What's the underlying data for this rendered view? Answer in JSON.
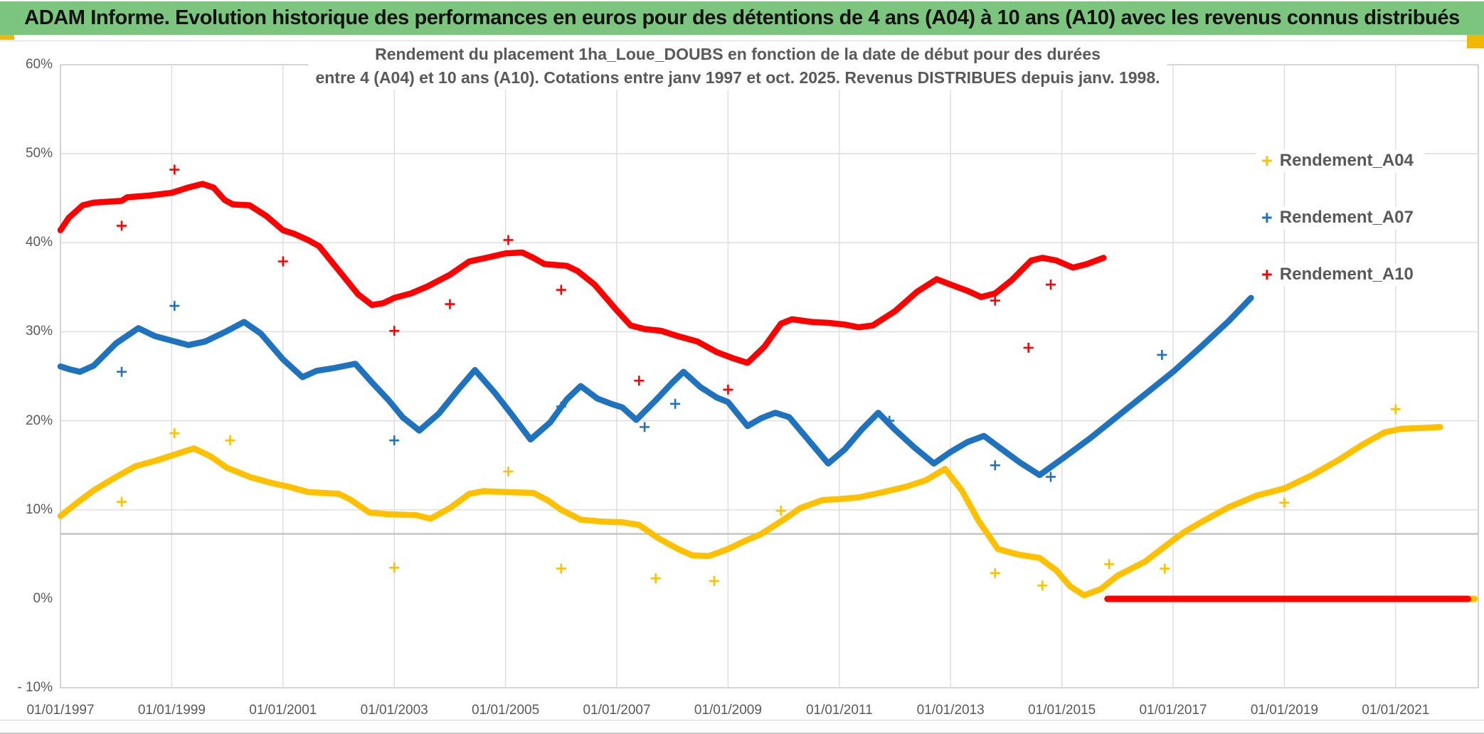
{
  "banner": {
    "text": "ADAM Informe. Evolution historique des performances en euros pour des détentions de 4 ans (A04) à 10 ans (A10) avec les revenus connus distribués",
    "bg_color": "#7CC57E",
    "text_color": "#111111"
  },
  "frame": {
    "accent_color": "#F2B705"
  },
  "chart_data": {
    "type": "scatter",
    "title_line1": "Rendement du placement 1ha_Loue_DOUBS en fonction de la date de début pour des durées",
    "title_line2": "entre 4 (A04) et 10 ans (A10). Cotations entre janv 1997 et oct. 2025. Revenus DISTRIBUES depuis janv. 1998.",
    "axis_text_color": "#595959",
    "grid_color": "#dcdcdc",
    "extra_line_color": "#bfbfbf",
    "border_color": "#c8c8c8",
    "x_axis": {
      "tick_years": [
        1997,
        1999,
        2001,
        2003,
        2005,
        2007,
        2009,
        2011,
        2013,
        2015,
        2017,
        2019,
        2021
      ],
      "tick_labels": [
        "01/01/1997",
        "01/01/1999",
        "01/01/2001",
        "01/01/2003",
        "01/01/2005",
        "01/01/2007",
        "01/01/2009",
        "01/01/2011",
        "01/01/2013",
        "01/01/2015",
        "01/01/2017",
        "01/01/2019",
        "01/01/2021"
      ],
      "range_years": [
        1997,
        2022.5
      ]
    },
    "y_axis": {
      "tick_values": [
        60,
        50,
        40,
        30,
        20,
        10,
        0,
        -10
      ],
      "tick_labels": [
        "60%",
        "50%",
        "40%",
        "30%",
        "20%",
        "10%",
        "0%",
        "- 10%"
      ],
      "range": [
        -10,
        60
      ],
      "extra_gridline_value": 7.3
    },
    "legend_position": "right",
    "series": [
      {
        "name": "Rendement_A04",
        "color": "#FFC000",
        "points": [
          [
            1997.0,
            9.3
          ],
          [
            1997.3,
            10.8
          ],
          [
            1997.6,
            12.2
          ],
          [
            1998.0,
            13.7
          ],
          [
            1998.35,
            14.9
          ],
          [
            1998.7,
            15.5
          ],
          [
            1999.0,
            16.1
          ],
          [
            1999.4,
            16.9
          ],
          [
            1999.7,
            16.0
          ],
          [
            2000.0,
            14.7
          ],
          [
            2000.4,
            13.7
          ],
          [
            2000.8,
            13.0
          ],
          [
            2001.1,
            12.6
          ],
          [
            2001.45,
            12.0
          ],
          [
            2002.0,
            11.8
          ],
          [
            2002.2,
            11.2
          ],
          [
            2002.55,
            9.7
          ],
          [
            2002.9,
            9.5
          ],
          [
            2003.4,
            9.4
          ],
          [
            2003.65,
            9.0
          ],
          [
            2004.0,
            10.2
          ],
          [
            2004.35,
            11.8
          ],
          [
            2004.6,
            12.1
          ],
          [
            2005.0,
            12.0
          ],
          [
            2005.5,
            11.9
          ],
          [
            2005.75,
            11.1
          ],
          [
            2006.0,
            10.0
          ],
          [
            2006.35,
            8.9
          ],
          [
            2006.7,
            8.7
          ],
          [
            2007.1,
            8.6
          ],
          [
            2007.4,
            8.3
          ],
          [
            2007.75,
            6.8
          ],
          [
            2008.1,
            5.6
          ],
          [
            2008.35,
            4.9
          ],
          [
            2008.65,
            4.8
          ],
          [
            2009.0,
            5.6
          ],
          [
            2009.3,
            6.5
          ],
          [
            2009.6,
            7.3
          ],
          [
            2010.0,
            8.9
          ],
          [
            2010.3,
            10.2
          ],
          [
            2010.7,
            11.1
          ],
          [
            2011.0,
            11.2
          ],
          [
            2011.35,
            11.4
          ],
          [
            2011.8,
            12.0
          ],
          [
            2012.2,
            12.6
          ],
          [
            2012.55,
            13.3
          ],
          [
            2012.9,
            14.6
          ],
          [
            2013.2,
            12.2
          ],
          [
            2013.5,
            8.8
          ],
          [
            2013.85,
            5.6
          ],
          [
            2014.2,
            5.0
          ],
          [
            2014.6,
            4.6
          ],
          [
            2014.9,
            3.2
          ],
          [
            2015.15,
            1.4
          ],
          [
            2015.4,
            0.4
          ],
          [
            2015.7,
            1.1
          ],
          [
            2016.0,
            2.6
          ],
          [
            2016.5,
            4.2
          ],
          [
            2017.0,
            6.6
          ],
          [
            2017.2,
            7.5
          ],
          [
            2017.5,
            8.6
          ],
          [
            2018.0,
            10.3
          ],
          [
            2018.5,
            11.6
          ],
          [
            2019.0,
            12.4
          ],
          [
            2019.5,
            13.9
          ],
          [
            2020.0,
            15.7
          ],
          [
            2020.4,
            17.3
          ],
          [
            2020.8,
            18.7
          ],
          [
            2021.1,
            19.1
          ],
          [
            2021.5,
            19.2
          ],
          [
            2021.8,
            19.3
          ]
        ],
        "zero_segment": [
          [
            2022.0,
            0
          ],
          [
            2022.42,
            0
          ]
        ],
        "outliers": [
          [
            1998.1,
            10.9
          ],
          [
            1999.05,
            18.6
          ],
          [
            2000.05,
            17.8
          ],
          [
            2003.0,
            3.5
          ],
          [
            2005.05,
            14.3
          ],
          [
            2006.0,
            3.4
          ],
          [
            2007.7,
            2.3
          ],
          [
            2008.75,
            2.0
          ],
          [
            2009.95,
            9.9
          ],
          [
            2013.8,
            2.9
          ],
          [
            2014.65,
            1.5
          ],
          [
            2015.85,
            3.9
          ],
          [
            2016.85,
            3.4
          ],
          [
            2019.0,
            10.8
          ],
          [
            2021.0,
            21.3
          ]
        ]
      },
      {
        "name": "Rendement_A07",
        "color": "#1F72BE",
        "points": [
          [
            1997.0,
            26.1
          ],
          [
            1997.15,
            25.8
          ],
          [
            1997.35,
            25.5
          ],
          [
            1997.6,
            26.2
          ],
          [
            1998.0,
            28.7
          ],
          [
            1998.4,
            30.4
          ],
          [
            1998.7,
            29.5
          ],
          [
            1999.0,
            29.0
          ],
          [
            1999.3,
            28.5
          ],
          [
            1999.6,
            28.9
          ],
          [
            2000.0,
            30.1
          ],
          [
            2000.3,
            31.1
          ],
          [
            2000.6,
            29.8
          ],
          [
            2001.0,
            26.9
          ],
          [
            2001.35,
            24.9
          ],
          [
            2001.6,
            25.6
          ],
          [
            2001.9,
            25.9
          ],
          [
            2002.3,
            26.4
          ],
          [
            2002.6,
            24.3
          ],
          [
            2002.9,
            22.3
          ],
          [
            2003.15,
            20.4
          ],
          [
            2003.45,
            18.9
          ],
          [
            2003.8,
            20.8
          ],
          [
            2004.15,
            23.5
          ],
          [
            2004.45,
            25.7
          ],
          [
            2004.8,
            23.2
          ],
          [
            2005.1,
            20.8
          ],
          [
            2005.45,
            17.9
          ],
          [
            2005.8,
            19.8
          ],
          [
            2006.1,
            22.4
          ],
          [
            2006.35,
            23.9
          ],
          [
            2006.65,
            22.5
          ],
          [
            2006.9,
            21.9
          ],
          [
            2007.1,
            21.5
          ],
          [
            2007.35,
            20.1
          ],
          [
            2007.7,
            22.3
          ],
          [
            2008.0,
            24.3
          ],
          [
            2008.2,
            25.5
          ],
          [
            2008.5,
            23.8
          ],
          [
            2008.8,
            22.6
          ],
          [
            2009.0,
            22.1
          ],
          [
            2009.35,
            19.4
          ],
          [
            2009.6,
            20.3
          ],
          [
            2009.85,
            20.9
          ],
          [
            2010.1,
            20.4
          ],
          [
            2010.45,
            17.8
          ],
          [
            2010.8,
            15.2
          ],
          [
            2011.1,
            16.8
          ],
          [
            2011.4,
            19.0
          ],
          [
            2011.7,
            20.9
          ],
          [
            2012.0,
            19.0
          ],
          [
            2012.35,
            17.0
          ],
          [
            2012.7,
            15.2
          ],
          [
            2013.0,
            16.5
          ],
          [
            2013.3,
            17.6
          ],
          [
            2013.6,
            18.3
          ],
          [
            2013.9,
            16.9
          ],
          [
            2014.25,
            15.3
          ],
          [
            2014.6,
            13.9
          ],
          [
            2015.0,
            15.7
          ],
          [
            2015.5,
            18.0
          ],
          [
            2016.0,
            20.5
          ],
          [
            2016.5,
            23.0
          ],
          [
            2017.0,
            25.5
          ],
          [
            2017.5,
            28.3
          ],
          [
            2018.0,
            31.2
          ],
          [
            2018.4,
            33.8
          ]
        ],
        "zero_segment": null,
        "outliers": [
          [
            1998.1,
            25.5
          ],
          [
            1999.05,
            32.9
          ],
          [
            2003.0,
            17.8
          ],
          [
            2006.0,
            21.6
          ],
          [
            2007.5,
            19.3
          ],
          [
            2008.05,
            21.9
          ],
          [
            2011.9,
            20.0
          ],
          [
            2013.8,
            15.0
          ],
          [
            2014.8,
            13.7
          ],
          [
            2016.8,
            27.4
          ]
        ]
      },
      {
        "name": "Rendement_A10",
        "color": "#FF0000",
        "points": [
          [
            1997.0,
            41.4
          ],
          [
            1997.15,
            42.8
          ],
          [
            1997.4,
            44.2
          ],
          [
            1997.6,
            44.5
          ],
          [
            1998.1,
            44.7
          ],
          [
            1998.2,
            45.1
          ],
          [
            1998.6,
            45.3
          ],
          [
            1999.0,
            45.6
          ],
          [
            1999.3,
            46.2
          ],
          [
            1999.55,
            46.6
          ],
          [
            1999.75,
            46.2
          ],
          [
            1999.95,
            44.8
          ],
          [
            2000.1,
            44.3
          ],
          [
            2000.4,
            44.2
          ],
          [
            2000.7,
            43.0
          ],
          [
            2001.0,
            41.4
          ],
          [
            2001.2,
            41.0
          ],
          [
            2001.45,
            40.3
          ],
          [
            2001.65,
            39.6
          ],
          [
            2002.0,
            36.9
          ],
          [
            2002.35,
            34.2
          ],
          [
            2002.6,
            33.0
          ],
          [
            2002.8,
            33.2
          ],
          [
            2003.0,
            33.8
          ],
          [
            2003.3,
            34.3
          ],
          [
            2003.6,
            35.1
          ],
          [
            2004.0,
            36.4
          ],
          [
            2004.35,
            37.9
          ],
          [
            2004.65,
            38.3
          ],
          [
            2005.0,
            38.8
          ],
          [
            2005.3,
            38.9
          ],
          [
            2005.5,
            38.3
          ],
          [
            2005.7,
            37.6
          ],
          [
            2006.1,
            37.4
          ],
          [
            2006.3,
            36.8
          ],
          [
            2006.6,
            35.3
          ],
          [
            2007.0,
            32.4
          ],
          [
            2007.25,
            30.7
          ],
          [
            2007.5,
            30.3
          ],
          [
            2007.8,
            30.1
          ],
          [
            2008.1,
            29.5
          ],
          [
            2008.45,
            28.9
          ],
          [
            2008.8,
            27.7
          ],
          [
            2009.1,
            27.0
          ],
          [
            2009.35,
            26.5
          ],
          [
            2009.65,
            28.3
          ],
          [
            2009.95,
            30.9
          ],
          [
            2010.15,
            31.4
          ],
          [
            2010.5,
            31.1
          ],
          [
            2010.8,
            31.0
          ],
          [
            2011.1,
            30.8
          ],
          [
            2011.35,
            30.5
          ],
          [
            2011.6,
            30.7
          ],
          [
            2012.0,
            32.3
          ],
          [
            2012.4,
            34.5
          ],
          [
            2012.75,
            35.9
          ],
          [
            2013.0,
            35.3
          ],
          [
            2013.3,
            34.6
          ],
          [
            2013.55,
            33.9
          ],
          [
            2013.8,
            34.3
          ],
          [
            2014.1,
            35.8
          ],
          [
            2014.45,
            38.0
          ],
          [
            2014.65,
            38.3
          ],
          [
            2014.9,
            38.0
          ],
          [
            2015.2,
            37.2
          ],
          [
            2015.45,
            37.6
          ],
          [
            2015.75,
            38.3
          ]
        ],
        "zero_segment": [
          [
            2015.82,
            0
          ],
          [
            2022.3,
            0
          ]
        ],
        "outliers": [
          [
            1998.1,
            41.9
          ],
          [
            1999.05,
            48.2
          ],
          [
            2001.0,
            37.9
          ],
          [
            2003.0,
            30.1
          ],
          [
            2004.0,
            33.1
          ],
          [
            2005.05,
            40.3
          ],
          [
            2006.0,
            34.7
          ],
          [
            2007.4,
            24.5
          ],
          [
            2009.0,
            23.5
          ],
          [
            2013.8,
            33.5
          ],
          [
            2014.4,
            28.2
          ],
          [
            2014.8,
            35.3
          ]
        ]
      }
    ]
  }
}
